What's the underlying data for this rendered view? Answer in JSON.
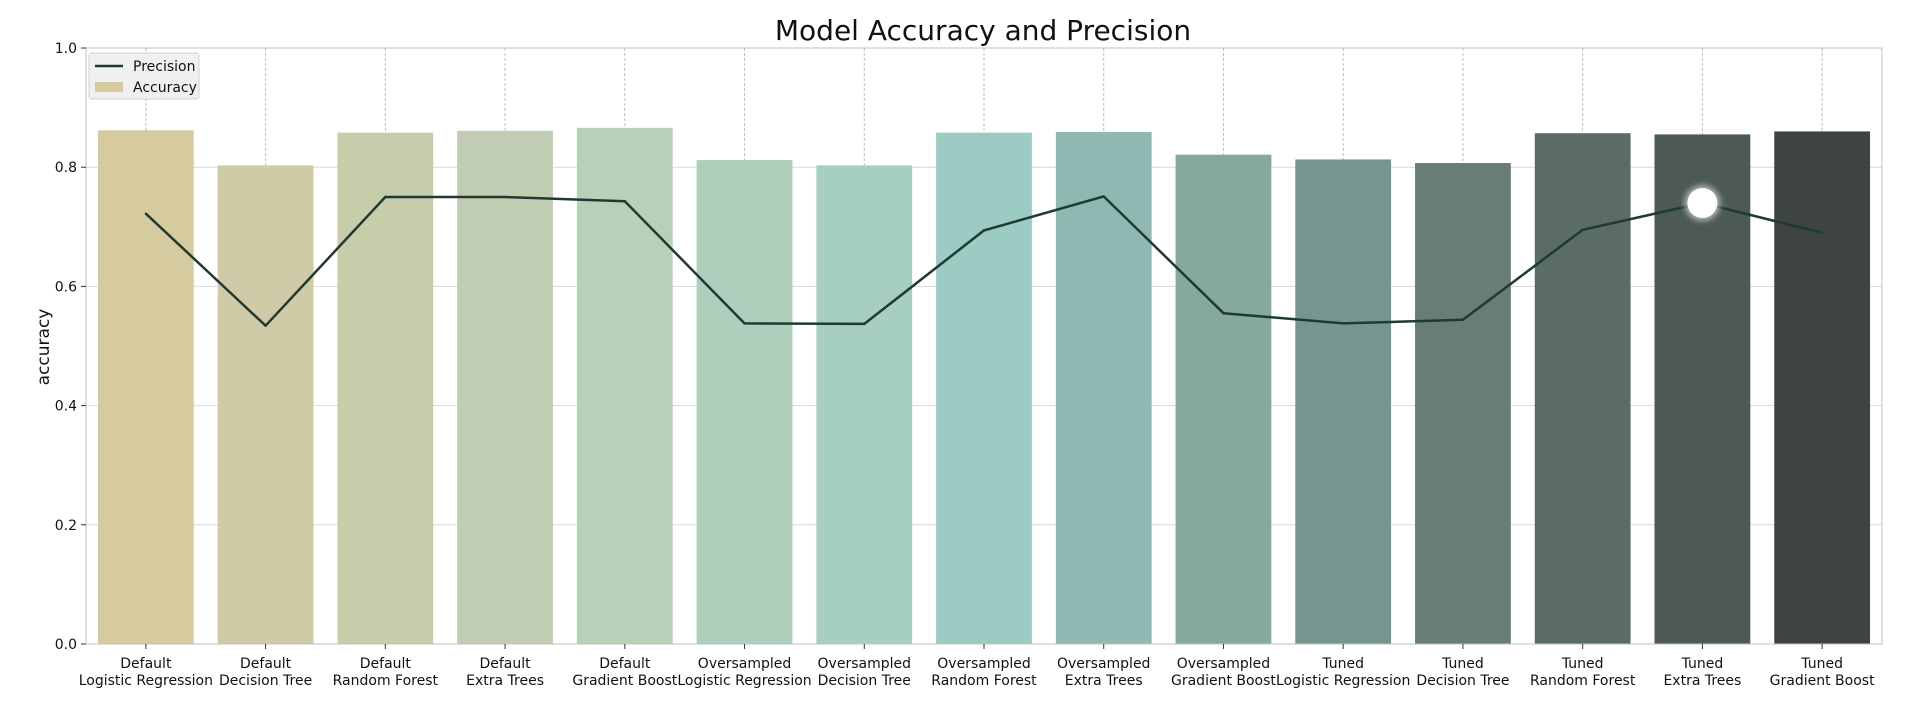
{
  "chart_data": {
    "type": "bar",
    "title": "Model Accuracy and Precision",
    "xlabel": "",
    "ylabel": "accuracy",
    "ylim": [
      0,
      1.0
    ],
    "yticks": [
      "0.0",
      "0.2",
      "0.4",
      "0.6",
      "0.8",
      "1.0"
    ],
    "grid": true,
    "legend_position": "top-left",
    "legend": [
      {
        "name": "Precision",
        "kind": "line"
      },
      {
        "name": "Accuracy",
        "kind": "bar"
      }
    ],
    "categories": [
      [
        "Default",
        "Logistic Regression"
      ],
      [
        "Default",
        "Decision Tree"
      ],
      [
        "Default",
        "Random Forest"
      ],
      [
        "Default",
        "Extra Trees"
      ],
      [
        "Default",
        "Gradient Boost"
      ],
      [
        "Oversampled",
        "Logistic Regression"
      ],
      [
        "Oversampled",
        "Decision Tree"
      ],
      [
        "Oversampled",
        "Random Forest"
      ],
      [
        "Oversampled",
        "Extra Trees"
      ],
      [
        "Oversampled",
        "Gradient Boost"
      ],
      [
        "Tuned",
        "Logistic Regression"
      ],
      [
        "Tuned",
        "Decision Tree"
      ],
      [
        "Tuned",
        "Random Forest"
      ],
      [
        "Tuned",
        "Extra Trees"
      ],
      [
        "Tuned",
        "Gradient Boost"
      ]
    ],
    "series": [
      {
        "name": "Accuracy",
        "kind": "bar",
        "values": [
          0.862,
          0.803,
          0.858,
          0.861,
          0.866,
          0.812,
          0.803,
          0.858,
          0.859,
          0.821,
          0.813,
          0.807,
          0.857,
          0.855,
          0.86
        ]
      },
      {
        "name": "Precision",
        "kind": "line",
        "values": [
          0.722,
          0.534,
          0.75,
          0.75,
          0.743,
          0.538,
          0.537,
          0.694,
          0.751,
          0.555,
          0.538,
          0.544,
          0.695,
          0.74,
          0.69
        ]
      }
    ],
    "colors": {
      "bars": [
        "#d6cb9f",
        "#cfcba6",
        "#c7cdaa",
        "#c0cdb3",
        "#b8d0b8",
        "#afcfbd",
        "#a6cfc0",
        "#9ccbc3",
        "#8fb8b2",
        "#85a99f",
        "#77958f",
        "#687d77",
        "#5a6b68",
        "#4c5957",
        "#3e4442"
      ],
      "line": "#1e3a33",
      "grid": "#d9d9d9",
      "frame": "#c0c0c0",
      "legend_bg": "#f0f0f0"
    },
    "highlight": {
      "category_index": 13,
      "color": "#ffffff"
    }
  }
}
